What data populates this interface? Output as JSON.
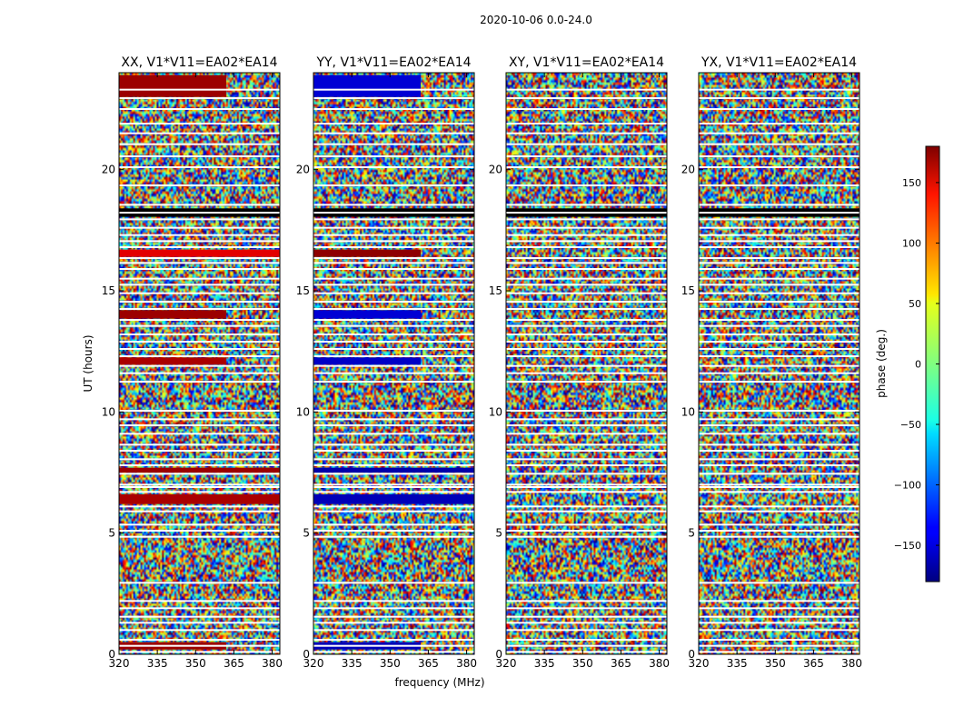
{
  "chart_data": {
    "type": "heatmap",
    "title": "2020-10-06 0.0-24.0",
    "xlabel": "frequency (MHz)",
    "ylabel": "UT (hours)",
    "xlim": [
      320,
      383
    ],
    "ylim": [
      0,
      24
    ],
    "x_ticks": [
      320,
      335,
      350,
      365,
      380
    ],
    "x_tick_labels": [
      "320",
      "335",
      "350",
      "365",
      "380"
    ],
    "y_ticks": [
      0,
      5,
      10,
      15,
      20
    ],
    "y_tick_labels": [
      "0",
      "5",
      "10",
      "15",
      "20"
    ],
    "panels": [
      {
        "title": "XX, V1*V11=EA02*EA14",
        "coherent_bands": [
          {
            "ut_start": 0.2,
            "ut_end": 0.5,
            "freq_end": 362,
            "phase": 170
          },
          {
            "ut_start": 6.2,
            "ut_end": 6.6,
            "freq_end": 383,
            "phase": 165
          },
          {
            "ut_start": 7.5,
            "ut_end": 7.7,
            "freq_end": 383,
            "phase": 170
          },
          {
            "ut_start": 11.95,
            "ut_end": 12.25,
            "freq_end": 362,
            "phase": 165
          },
          {
            "ut_start": 13.85,
            "ut_end": 14.2,
            "freq_end": 362,
            "phase": 170
          },
          {
            "ut_start": 16.4,
            "ut_end": 16.7,
            "freq_end": 383,
            "phase": 145
          },
          {
            "ut_start": 23.0,
            "ut_end": 23.9,
            "freq_end": 362,
            "phase": 170
          }
        ]
      },
      {
        "title": "YY, V1*V11=EA02*EA14",
        "coherent_bands": [
          {
            "ut_start": 0.2,
            "ut_end": 0.5,
            "freq_end": 362,
            "phase": -160
          },
          {
            "ut_start": 6.2,
            "ut_end": 6.6,
            "freq_end": 383,
            "phase": -160
          },
          {
            "ut_start": 7.5,
            "ut_end": 7.7,
            "freq_end": 383,
            "phase": -165
          },
          {
            "ut_start": 11.95,
            "ut_end": 12.25,
            "freq_end": 362,
            "phase": -155
          },
          {
            "ut_start": 13.85,
            "ut_end": 14.2,
            "freq_end": 362,
            "phase": -150
          },
          {
            "ut_start": 16.4,
            "ut_end": 16.7,
            "freq_end": 362,
            "phase": 175
          },
          {
            "ut_start": 23.0,
            "ut_end": 23.9,
            "freq_end": 362,
            "phase": -150
          }
        ]
      },
      {
        "title": "XY, V1*V11=EA02*EA14",
        "coherent_bands": []
      },
      {
        "title": "YX, V1*V11=EA02*EA14",
        "coherent_bands": []
      }
    ],
    "flagged_ut_rows": [
      0.1,
      0.35,
      0.6,
      1.0,
      1.3,
      1.55,
      1.9,
      2.2,
      2.95,
      4.85,
      5.1,
      5.35,
      5.9,
      6.1,
      6.7,
      6.9,
      7.0,
      7.45,
      7.8,
      8.05,
      8.4,
      8.65,
      9.1,
      9.45,
      9.7,
      10.05,
      11.25,
      11.6,
      11.9,
      12.3,
      12.6,
      12.9,
      13.2,
      13.55,
      13.8,
      14.25,
      14.55,
      14.9,
      15.25,
      15.5,
      15.9,
      16.15,
      16.35,
      16.8,
      17.05,
      17.3,
      17.6,
      17.95,
      18.55,
      19.35,
      20.1,
      20.55,
      21.05,
      21.5,
      21.9,
      22.5,
      22.95,
      23.3
    ],
    "flagged_ut_blocks": [
      [
        18.05,
        18.4
      ]
    ],
    "colorbar": {
      "label": "phase (deg.)",
      "range": [
        -180,
        180
      ],
      "ticks": [
        150,
        100,
        50,
        0,
        -50,
        -100,
        -150
      ],
      "tick_labels": [
        "150",
        "100",
        "50",
        "0",
        "−50",
        "−100",
        "−150"
      ],
      "colormap": "jet"
    }
  }
}
